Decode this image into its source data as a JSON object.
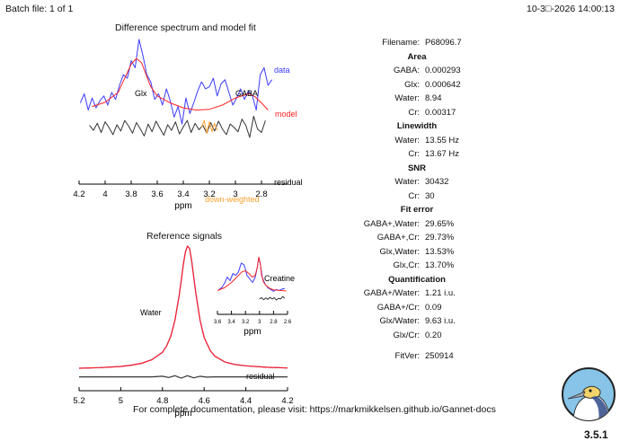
{
  "header": {
    "batch": "Batch file: 1 of 1",
    "datetime": "10-3□-2026 14:00:13"
  },
  "colors": {
    "data": "#3a3aff",
    "model": "#ff2222",
    "residual": "#333333",
    "downweighted": "#ffa030"
  },
  "fit_panel": {
    "title": "Difference spectrum and model fit",
    "xlabel": "ppm",
    "labels": {
      "glx": "Glx",
      "gaba": "GABA",
      "data": "data",
      "model": "model",
      "residual": "residual",
      "downweighted": "down-weighted"
    }
  },
  "ref_panel": {
    "title": "Reference signals",
    "xlabel": "ppm",
    "labels": {
      "water": "Water",
      "residual": "residual",
      "creatine": "Creatine"
    },
    "inset_xlabel": "ppm"
  },
  "results": {
    "filename": {
      "label": "Filename:",
      "value": "P68096.7"
    },
    "sections": [
      {
        "heading": "Area",
        "rows": [
          {
            "label": "GABA:",
            "value": "0.000293"
          },
          {
            "label": "Glx:",
            "value": "0.000642"
          },
          {
            "label": "Water:",
            "value": "8.94"
          },
          {
            "label": "Cr:",
            "value": "0.00317"
          }
        ]
      },
      {
        "heading": "Linewidth",
        "rows": [
          {
            "label": "Water:",
            "value": "13.55 Hz"
          },
          {
            "label": "Cr:",
            "value": "13.67 Hz"
          }
        ]
      },
      {
        "heading": "SNR",
        "rows": [
          {
            "label": "Water:",
            "value": "30432"
          },
          {
            "label": "Cr:",
            "value": "30"
          }
        ]
      },
      {
        "heading": "Fit error",
        "rows": [
          {
            "label": "GABA+,Water:",
            "value": "29.65%"
          },
          {
            "label": "GABA+,Cr:",
            "value": "29.73%"
          },
          {
            "label": "Glx,Water:",
            "value": "13.53%"
          },
          {
            "label": "Glx,Cr:",
            "value": "13.70%"
          }
        ]
      },
      {
        "heading": "Quantification",
        "rows": [
          {
            "label": "GABA+/Water:",
            "value": "1.21 i.u."
          },
          {
            "label": "GABA+/Cr:",
            "value": "0.09"
          },
          {
            "label": "Glx/Water:",
            "value": "9.63 i.u."
          },
          {
            "label": "Glx/Cr:",
            "value": "0.20"
          }
        ]
      }
    ],
    "fitver": {
      "label": "FitVer:",
      "value": "250914"
    }
  },
  "footer": {
    "text": "For complete documentation, please visit: https://markmikkelsen.github.io/Gannet-docs",
    "version": "3.5.1"
  },
  "logo": {
    "icon": "gannet-bird-icon"
  },
  "chart_data": [
    {
      "type": "line",
      "title": "Difference spectrum and model fit",
      "xlabel": "ppm",
      "ylabel": "",
      "xlim": [
        4.2,
        2.6
      ],
      "xticks": [
        4.2,
        4,
        3.8,
        3.6,
        3.4,
        3.2,
        3,
        2.8
      ],
      "xtick_labels": [
        "4.2",
        "4",
        "3.8",
        "3.6",
        "3.4",
        "3.2",
        "3",
        "2.8"
      ],
      "grid": false,
      "series": [
        {
          "name": "data",
          "color": "#3a3aff",
          "x": [
            4.19,
            4.16,
            4.13,
            4.1,
            4.07,
            4.04,
            4.01,
            3.98,
            3.95,
            3.92,
            3.89,
            3.86,
            3.83,
            3.8,
            3.77,
            3.74,
            3.71,
            3.68,
            3.65,
            3.62,
            3.59,
            3.56,
            3.53,
            3.5,
            3.47,
            3.44,
            3.41,
            3.38,
            3.35,
            3.32,
            3.29,
            3.26,
            3.23,
            3.2,
            3.17,
            3.14,
            3.11,
            3.08,
            3.05,
            3.02,
            2.99,
            2.96,
            2.93,
            2.9,
            2.87,
            2.84,
            2.81,
            2.78,
            2.75,
            2.72
          ],
          "y": [
            0.05,
            0.18,
            -0.05,
            0.12,
            -0.02,
            0.08,
            0.15,
            0.02,
            0.2,
            0.1,
            0.3,
            0.45,
            0.4,
            0.65,
            0.55,
            0.95,
            0.72,
            0.45,
            0.35,
            0.1,
            0.18,
            0.02,
            0.25,
            0.08,
            -0.15,
            0.0,
            -0.25,
            0.12,
            -0.1,
            0.05,
            0.22,
            0.35,
            0.25,
            0.28,
            0.4,
            0.15,
            0.32,
            0.38,
            0.2,
            0.02,
            0.12,
            0.25,
            0.1,
            0.22,
            0.15,
            -0.05,
            0.45,
            0.55,
            0.3,
            0.38
          ]
        },
        {
          "name": "model",
          "color": "#ff2222",
          "x": [
            4.1,
            4.0,
            3.9,
            3.8,
            3.76,
            3.72,
            3.7,
            3.65,
            3.6,
            3.5,
            3.4,
            3.3,
            3.2,
            3.1,
            3.0,
            2.9,
            2.85,
            2.8,
            2.75
          ],
          "y": [
            0.0,
            0.06,
            0.2,
            0.6,
            0.68,
            0.62,
            0.52,
            0.28,
            0.15,
            0.05,
            -0.02,
            -0.05,
            -0.04,
            0.02,
            0.12,
            0.18,
            0.14,
            0.05,
            -0.05
          ]
        },
        {
          "name": "residual",
          "color": "#333333",
          "x": [
            4.12,
            4.09,
            4.06,
            4.03,
            4.0,
            3.97,
            3.94,
            3.91,
            3.88,
            3.85,
            3.82,
            3.79,
            3.76,
            3.73,
            3.7,
            3.67,
            3.64,
            3.61,
            3.58,
            3.55,
            3.52,
            3.49,
            3.46,
            3.43,
            3.4,
            3.37,
            3.34,
            3.31,
            3.28,
            3.25,
            3.22,
            3.19,
            3.16,
            3.13,
            3.1,
            3.07,
            3.04,
            3.01,
            2.98,
            2.95,
            2.92,
            2.89,
            2.86,
            2.83,
            2.8,
            2.77
          ],
          "y": [
            0.05,
            -0.02,
            0.08,
            -0.05,
            0.1,
            0.02,
            -0.08,
            0.06,
            -0.03,
            0.12,
            0.04,
            -0.06,
            0.09,
            0.0,
            -0.1,
            0.07,
            -0.04,
            0.11,
            0.01,
            -0.09,
            0.06,
            -0.02,
            0.1,
            -0.07,
            0.03,
            0.12,
            -0.05,
            0.08,
            -0.01,
            0.05,
            -0.06,
            0.09,
            -0.03,
            0.11,
            0.0,
            -0.08,
            0.07,
            0.02,
            -0.04,
            0.14,
            0.05,
            -0.12,
            0.18,
            0.0,
            -0.05,
            0.12
          ]
        },
        {
          "name": "down-weighted",
          "color": "#ffa030",
          "x": [
            3.26,
            3.24,
            3.22,
            3.2,
            3.18,
            3.16,
            3.14
          ],
          "y": [
            0.02,
            0.12,
            -0.06,
            0.1,
            -0.04,
            0.08,
            -0.02
          ]
        }
      ]
    },
    {
      "type": "line",
      "title": "Reference signals",
      "xlabel": "ppm",
      "ylabel": "",
      "xlim": [
        5.2,
        4.2
      ],
      "xticks": [
        5.2,
        5,
        4.8,
        4.6,
        4.4,
        4.2
      ],
      "xtick_labels": [
        "5.2",
        "5",
        "4.8",
        "4.6",
        "4.4",
        "4.2"
      ],
      "grid": false,
      "series": [
        {
          "name": "Water",
          "color": "#3a3aff",
          "x": [
            5.2,
            5.1,
            5.0,
            4.95,
            4.9,
            4.85,
            4.8,
            4.78,
            4.76,
            4.74,
            4.72,
            4.71,
            4.7,
            4.69,
            4.68,
            4.67,
            4.66,
            4.64,
            4.62,
            4.6,
            4.57,
            4.55,
            4.5,
            4.45,
            4.4,
            4.3,
            4.2
          ],
          "y": [
            0.01,
            0.015,
            0.025,
            0.035,
            0.05,
            0.08,
            0.14,
            0.19,
            0.27,
            0.4,
            0.6,
            0.72,
            0.85,
            0.95,
            1.0,
            0.98,
            0.88,
            0.62,
            0.4,
            0.26,
            0.15,
            0.11,
            0.06,
            0.04,
            0.03,
            0.018,
            0.012
          ]
        },
        {
          "name": "model",
          "color": "#ff2222",
          "x": [
            5.2,
            5.1,
            5.0,
            4.95,
            4.9,
            4.85,
            4.8,
            4.78,
            4.76,
            4.74,
            4.72,
            4.71,
            4.7,
            4.69,
            4.68,
            4.67,
            4.66,
            4.64,
            4.62,
            4.6,
            4.57,
            4.55,
            4.5,
            4.45,
            4.4,
            4.3,
            4.2
          ],
          "y": [
            0.01,
            0.015,
            0.025,
            0.035,
            0.05,
            0.08,
            0.14,
            0.19,
            0.27,
            0.4,
            0.6,
            0.72,
            0.85,
            0.95,
            1.0,
            0.98,
            0.88,
            0.62,
            0.4,
            0.26,
            0.15,
            0.11,
            0.06,
            0.04,
            0.03,
            0.018,
            0.012
          ]
        },
        {
          "name": "residual",
          "color": "#333333",
          "x": [
            5.2,
            5.0,
            4.85,
            4.8,
            4.77,
            4.74,
            4.71,
            4.68,
            4.65,
            4.62,
            4.59,
            4.55,
            4.4,
            4.2
          ],
          "y": [
            -0.06,
            -0.06,
            -0.06,
            -0.055,
            -0.065,
            -0.05,
            -0.07,
            -0.05,
            -0.068,
            -0.055,
            -0.062,
            -0.06,
            -0.06,
            -0.06
          ]
        }
      ]
    },
    {
      "type": "line",
      "title": "",
      "xlabel": "ppm",
      "ylabel": "",
      "xlim": [
        3.6,
        2.6
      ],
      "xticks": [
        3.6,
        3.4,
        3.2,
        3,
        2.8,
        2.6
      ],
      "xtick_labels": [
        "3.6",
        "3.4",
        "3.2",
        "3",
        "2.8",
        "2.6"
      ],
      "grid": false,
      "series": [
        {
          "name": "Creatine",
          "color": "#3a3aff",
          "x": [
            3.58,
            3.54,
            3.5,
            3.46,
            3.42,
            3.38,
            3.34,
            3.3,
            3.26,
            3.22,
            3.2,
            3.18,
            3.14,
            3.1,
            3.06,
            3.03,
            3.01,
            2.99,
            2.96,
            2.92,
            2.88,
            2.84,
            2.8,
            2.76,
            2.72,
            2.68,
            2.64
          ],
          "y": [
            0.05,
            0.1,
            0.22,
            0.4,
            0.3,
            0.5,
            0.45,
            0.55,
            0.8,
            0.75,
            0.62,
            0.45,
            0.35,
            0.25,
            0.4,
            0.7,
            0.95,
            0.78,
            0.4,
            0.2,
            0.1,
            0.05,
            0.0,
            0.05,
            0.02,
            0.06,
            0.08
          ]
        },
        {
          "name": "model",
          "color": "#ff2222",
          "x": [
            3.6,
            3.5,
            3.4,
            3.3,
            3.25,
            3.2,
            3.15,
            3.1,
            3.06,
            3.03,
            3.01,
            2.99,
            2.97,
            2.94,
            2.9,
            2.85,
            2.8,
            2.7,
            2.62
          ],
          "y": [
            0.02,
            0.1,
            0.25,
            0.45,
            0.55,
            0.58,
            0.5,
            0.4,
            0.45,
            0.7,
            0.97,
            0.8,
            0.45,
            0.25,
            0.15,
            0.08,
            0.04,
            0.02,
            0.01
          ]
        },
        {
          "name": "residual",
          "color": "#333333",
          "x": [
            3.0,
            2.97,
            2.94,
            2.91,
            2.88,
            2.85,
            2.82,
            2.79,
            2.76,
            2.73,
            2.7,
            2.67,
            2.64
          ],
          "y": [
            -0.22,
            -0.18,
            -0.24,
            -0.19,
            -0.23,
            -0.17,
            -0.22,
            -0.18,
            -0.25,
            -0.2,
            -0.22,
            -0.15,
            -0.2
          ]
        }
      ]
    }
  ]
}
